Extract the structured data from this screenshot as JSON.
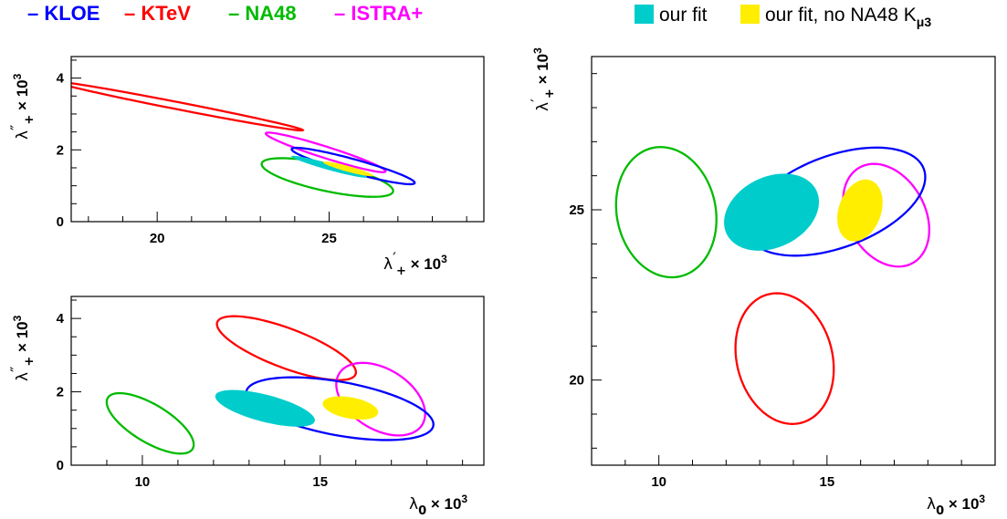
{
  "chart_data": {
    "type": "contour",
    "legend": {
      "placement": "top",
      "lines": [
        {
          "label": "– KLOE",
          "color": "#0000ff"
        },
        {
          "label": "– KTeV",
          "color": "#ff0000"
        },
        {
          "label": "– NA48",
          "color": "#00bb00"
        },
        {
          "label": "– ISTRA+",
          "color": "#ff00ff"
        }
      ],
      "fills": [
        {
          "label": "our fit",
          "color": "#00cccc"
        },
        {
          "label": "our fit, no NA48 K",
          "subscript": "μ3",
          "color": "#ffee00"
        }
      ]
    },
    "panels": [
      {
        "id": "top-left",
        "xlabel": {
          "sym": "λ",
          "sub": "+",
          "prime": "′",
          "tail": "× 10",
          "exp": "3"
        },
        "ylabel": {
          "sym": "λ",
          "sub": "+",
          "prime": "″",
          "tail": "× 10",
          "exp": "3"
        },
        "xlim": [
          17.5,
          29.5
        ],
        "ylim": [
          0,
          4.6
        ],
        "xticks": [
          20,
          25
        ],
        "yticks": [
          0,
          2,
          4
        ],
        "xminor": 1,
        "yminor": 0.5,
        "ellipses": [
          {
            "name": "KTeV",
            "color": "#ff0000",
            "fill": false,
            "center": [
              20.65,
              3.22
            ],
            "radii": [
              3.65,
              0.1
            ],
            "angle_deg": -10.6
          },
          {
            "name": "NA48",
            "color": "#00bb00",
            "fill": false,
            "center": [
              24.95,
              1.23
            ],
            "radii": [
              1.95,
              0.38
            ],
            "angle_deg": -11.5
          },
          {
            "name": "ISTRA+",
            "color": "#ff00ff",
            "fill": false,
            "center": [
              24.9,
              1.93
            ],
            "radii": [
              1.82,
              0.16
            ],
            "angle_deg": -16.9
          },
          {
            "name": "KLOE",
            "color": "#0000ff",
            "fill": false,
            "center": [
              25.7,
              1.55
            ],
            "radii": [
              1.85,
              0.19
            ],
            "angle_deg": -14.8
          },
          {
            "name": "our fit",
            "color": "#00cccc",
            "fill": true,
            "center": [
              25.0,
              1.53
            ],
            "radii": [
              1.14,
              0.09
            ],
            "angle_deg": -14.9
          },
          {
            "name": "our fit, no NA48 Kμ3",
            "color": "#ffee00",
            "fill": true,
            "center": [
              25.55,
              1.47
            ],
            "radii": [
              0.75,
              0.08
            ],
            "angle_deg": -14.6
          }
        ]
      },
      {
        "id": "bottom-left",
        "xlabel": {
          "sym": "λ",
          "sub": "0",
          "prime": "",
          "tail": "× 10",
          "exp": "3"
        },
        "ylabel": {
          "sym": "λ",
          "sub": "+",
          "prime": "″",
          "tail": "× 10",
          "exp": "3"
        },
        "xlim": [
          8,
          19.6
        ],
        "ylim": [
          0,
          4.6
        ],
        "xticks": [
          10,
          15
        ],
        "yticks": [
          0,
          2,
          4
        ],
        "xminor": 1,
        "yminor": 0.5,
        "ellipses": [
          {
            "name": "NA48",
            "color": "#00bb00",
            "fill": false,
            "center": [
              10.22,
              1.14
            ],
            "radii": [
              1.38,
              0.52
            ],
            "angle_deg": -30
          },
          {
            "name": "KTeV",
            "color": "#ff0000",
            "fill": false,
            "center": [
              14.05,
              3.19
            ],
            "radii": [
              2.07,
              0.54
            ],
            "angle_deg": -20
          },
          {
            "name": "ISTRA+",
            "color": "#ff00ff",
            "fill": false,
            "center": [
              16.7,
              1.8
            ],
            "radii": [
              1.36,
              0.83
            ],
            "angle_deg": -30
          },
          {
            "name": "KLOE",
            "color": "#0000ff",
            "fill": false,
            "center": [
              15.55,
              1.54
            ],
            "radii": [
              2.67,
              0.73
            ],
            "angle_deg": -10
          },
          {
            "name": "our fit",
            "color": "#00cccc",
            "fill": true,
            "center": [
              13.45,
              1.55
            ],
            "radii": [
              1.44,
              0.37
            ],
            "angle_deg": -14
          },
          {
            "name": "our fit, no NA48 Kμ3",
            "color": "#ffee00",
            "fill": true,
            "center": [
              15.85,
              1.56
            ],
            "radii": [
              0.79,
              0.29
            ],
            "angle_deg": -10
          }
        ]
      },
      {
        "id": "right",
        "xlabel": {
          "sym": "λ",
          "sub": "0",
          "prime": "",
          "tail": "× 10",
          "exp": "3"
        },
        "ylabel": {
          "sym": "λ",
          "sub": "+",
          "prime": "′",
          "tail": "× 10",
          "exp": "3"
        },
        "xlim": [
          8,
          20
        ],
        "ylim": [
          17.5,
          29.5
        ],
        "xticks": [
          10,
          15
        ],
        "yticks": [
          20,
          25
        ],
        "xminor": 1,
        "yminor": 1,
        "ellipses": [
          {
            "name": "NA48",
            "color": "#00bb00",
            "fill": false,
            "center": [
              10.22,
              24.93
            ],
            "radii": [
              1.47,
              1.93
            ],
            "angle_deg": 12
          },
          {
            "name": "KTeV",
            "color": "#ff0000",
            "fill": false,
            "center": [
              13.74,
              20.63
            ],
            "radii": [
              1.42,
              1.95
            ],
            "angle_deg": 15
          },
          {
            "name": "ISTRA+",
            "color": "#ff00ff",
            "fill": false,
            "center": [
              16.76,
              24.84
            ],
            "radii": [
              1.61,
              1.15
            ],
            "angle_deg": -60
          },
          {
            "name": "KLOE",
            "color": "#0000ff",
            "fill": false,
            "center": [
              15.26,
              25.24
            ],
            "radii": [
              2.79,
              1.35
            ],
            "angle_deg": 20
          },
          {
            "name": "our fit",
            "color": "#00cccc",
            "fill": true,
            "center": [
              13.35,
              24.93
            ],
            "radii": [
              1.48,
              1.04
            ],
            "angle_deg": 25
          },
          {
            "name": "our fit, no NA48 Kμ3",
            "color": "#ffee00",
            "fill": true,
            "center": [
              15.98,
              24.98
            ],
            "radii": [
              0.94,
              0.63
            ],
            "angle_deg": 70
          }
        ]
      }
    ]
  }
}
